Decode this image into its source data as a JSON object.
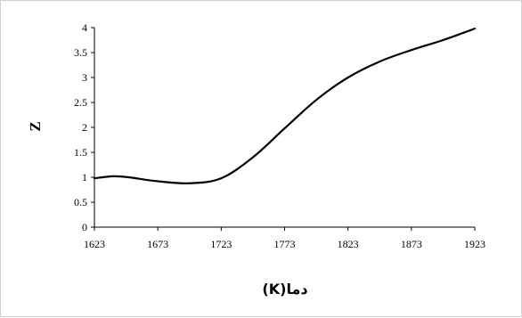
{
  "chart_data": {
    "type": "line",
    "title": "",
    "xlabel": "(K)دما",
    "ylabel": "Z",
    "xlim": [
      1623,
      1923
    ],
    "ylim": [
      0,
      4
    ],
    "x_ticks": [
      1623,
      1673,
      1723,
      1773,
      1823,
      1873,
      1923
    ],
    "y_ticks": [
      0,
      0.5,
      1,
      1.5,
      2,
      2.5,
      3,
      3.5,
      4
    ],
    "grid": false,
    "legend": "none",
    "line_color": "#000000",
    "series": [
      {
        "x": [
          1623,
          1638,
          1650,
          1673,
          1698,
          1723,
          1748,
          1773,
          1798,
          1823,
          1848,
          1873,
          1898,
          1923
        ],
        "values": [
          0.98,
          1.02,
          1.0,
          0.92,
          0.88,
          0.98,
          1.4,
          1.98,
          2.55,
          3.0,
          3.32,
          3.55,
          3.75,
          3.98
        ]
      }
    ]
  }
}
